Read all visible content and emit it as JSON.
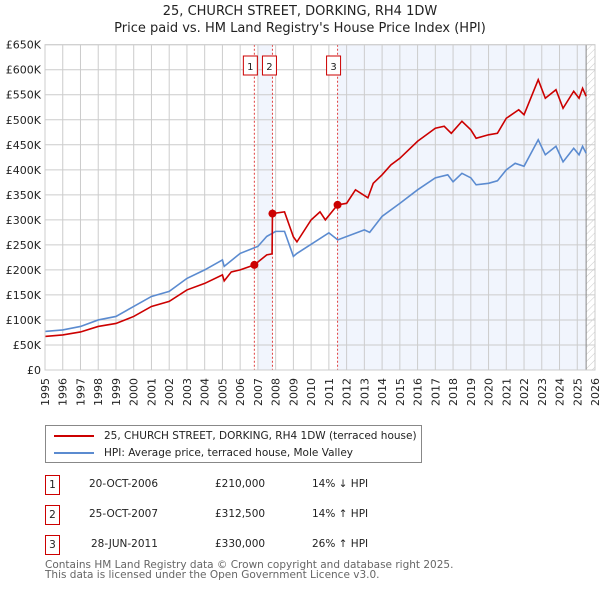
{
  "chart_data": {
    "type": "line",
    "title": "25, CHURCH STREET, DORKING, RH4 1DW",
    "subtitle": "Price paid vs. HM Land Registry's House Price Index (HPI)",
    "xlim": [
      1995,
      2026
    ],
    "ylim": [
      0,
      650000
    ],
    "y_ticks": [
      "£0",
      "£50K",
      "£100K",
      "£150K",
      "£200K",
      "£250K",
      "£300K",
      "£350K",
      "£400K",
      "£450K",
      "£500K",
      "£550K",
      "£600K",
      "£650K"
    ],
    "x_ticks": [
      "1995",
      "1996",
      "1997",
      "1998",
      "1999",
      "2000",
      "2001",
      "2002",
      "2003",
      "2004",
      "2005",
      "2006",
      "2007",
      "2008",
      "2009",
      "2010",
      "2011",
      "2012",
      "2013",
      "2014",
      "2015",
      "2016",
      "2017",
      "2018",
      "2019",
      "2020",
      "2021",
      "2022",
      "2023",
      "2024",
      "2025",
      "2026"
    ],
    "grid": true,
    "series": [
      {
        "name": "25, CHURCH STREET, DORKING, RH4 1DW (terraced house)",
        "color": "#cc0000",
        "x": [
          1995,
          1996,
          1997,
          1998,
          1999,
          2000,
          2001,
          2002,
          2003,
          2004,
          2005,
          2005.1,
          2005.5,
          2006,
          2006.8,
          2007.5,
          2007.8,
          2007.82,
          2008.5,
          2009,
          2009.2,
          2010,
          2010.5,
          2010.8,
          2011.49,
          2012,
          2012.5,
          2013.2,
          2013.5,
          2014,
          2014.5,
          2015,
          2016,
          2016.5,
          2017,
          2017.5,
          2017.9,
          2018.5,
          2019,
          2019.3,
          2020,
          2020.5,
          2021,
          2021.7,
          2022,
          2022.8,
          2023.2,
          2023.8,
          2024.2,
          2024.8,
          2025.1,
          2025.3,
          2025.5
        ],
        "y": [
          67,
          70,
          76,
          87,
          93,
          107,
          127,
          137,
          160,
          173,
          190,
          178,
          196,
          200,
          210,
          230,
          232,
          312.5,
          316,
          266,
          256,
          300,
          316,
          300,
          330,
          333,
          360,
          344,
          373,
          390,
          410,
          423,
          457,
          470,
          483,
          487,
          473,
          497,
          480,
          463,
          470,
          473,
          503,
          520,
          510,
          580,
          543,
          560,
          523,
          557,
          543,
          563,
          547
        ]
      },
      {
        "name": "HPI: Average price, terraced house, Mole Valley",
        "color": "#5b8bd0",
        "x": [
          1995,
          1996,
          1997,
          1998,
          1999,
          2000,
          2001,
          2002,
          2003,
          2004,
          2005,
          2005.1,
          2006,
          2007,
          2007.5,
          2008,
          2008.5,
          2009,
          2009.2,
          2011,
          2011.5,
          2013,
          2013.3,
          2014,
          2015,
          2016,
          2017,
          2017.7,
          2018,
          2018.5,
          2019,
          2019.3,
          2020,
          2020.5,
          2021,
          2021.5,
          2022,
          2022.8,
          2023.2,
          2023.8,
          2024.2,
          2024.8,
          2025.1,
          2025.3,
          2025.5
        ],
        "y": [
          77,
          80,
          87,
          100,
          107,
          127,
          147,
          157,
          183,
          200,
          220,
          207,
          233,
          247,
          267,
          277,
          277,
          227,
          233,
          274,
          260,
          280,
          275,
          307,
          333,
          360,
          384,
          390,
          376,
          393,
          384,
          370,
          373,
          378,
          400,
          413,
          407,
          460,
          430,
          447,
          416,
          443,
          430,
          447,
          433
        ]
      }
    ],
    "y_units": "thousands GBP",
    "sales": [
      {
        "n": "1",
        "x": 2006.8,
        "y": 210
      },
      {
        "n": "2",
        "x": 2007.82,
        "y": 312.5
      },
      {
        "n": "3",
        "x": 2011.49,
        "y": 330
      }
    ],
    "shaded_ranges": [
      [
        2007.0,
        2007.82
      ],
      [
        2011.49,
        2025.5
      ]
    ],
    "forecast_hatch_from": 2025.5
  },
  "legend": {
    "red": "25, CHURCH STREET, DORKING, RH4 1DW (terraced house)",
    "blue": "HPI: Average price, terraced house, Mole Valley"
  },
  "table": [
    {
      "n": "1",
      "date": "20-OCT-2006",
      "price": "£210,000",
      "hpi": "14% ↓ HPI"
    },
    {
      "n": "2",
      "date": "25-OCT-2007",
      "price": "£312,500",
      "hpi": "14% ↑ HPI"
    },
    {
      "n": "3",
      "date": "28-JUN-2011",
      "price": "£330,000",
      "hpi": "26% ↑ HPI"
    }
  ],
  "footer": {
    "line1": "Contains HM Land Registry data © Crown copyright and database right 2025.",
    "line2": "This data is licensed under the Open Government Licence v3.0."
  }
}
